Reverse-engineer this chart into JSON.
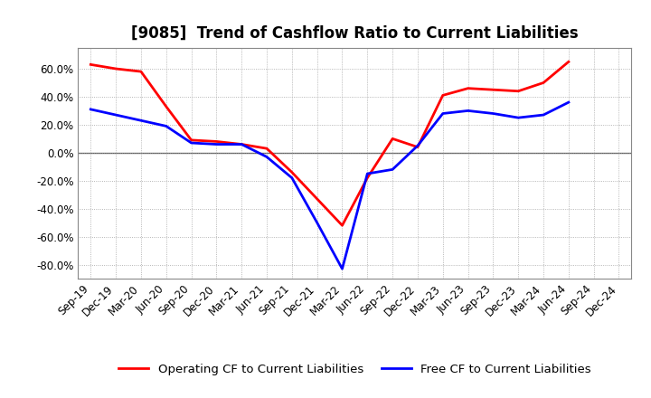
{
  "title": "[9085]  Trend of Cashflow Ratio to Current Liabilities",
  "x_labels": [
    "Sep-19",
    "Dec-19",
    "Mar-20",
    "Jun-20",
    "Sep-20",
    "Dec-20",
    "Mar-21",
    "Jun-21",
    "Sep-21",
    "Dec-21",
    "Mar-22",
    "Jun-22",
    "Sep-22",
    "Dec-22",
    "Mar-23",
    "Jun-23",
    "Sep-23",
    "Dec-23",
    "Mar-24",
    "Jun-24",
    "Sep-24",
    "Dec-24"
  ],
  "operating_cf": [
    63.0,
    60.0,
    58.0,
    33.0,
    9.0,
    8.0,
    6.0,
    3.0,
    -14.0,
    -33.0,
    -52.0,
    null,
    10.0,
    4.0,
    41.0,
    46.0,
    45.0,
    44.0,
    50.0,
    65.0,
    null,
    null
  ],
  "free_cf": [
    31.0,
    27.0,
    23.0,
    19.0,
    7.0,
    6.0,
    6.0,
    -3.0,
    -18.0,
    -50.0,
    -83.0,
    -15.0,
    -12.0,
    5.0,
    28.0,
    30.0,
    28.0,
    25.0,
    27.0,
    36.0,
    null,
    null
  ],
  "operating_cf_full": [
    63.0,
    60.0,
    58.0,
    33.0,
    9.0,
    8.0,
    6.0,
    3.0,
    -14.0,
    -33.0,
    -52.0,
    -18.0,
    10.0,
    4.0,
    41.0,
    46.0,
    45.0,
    44.0,
    50.0,
    65.0,
    null,
    null
  ],
  "ylim": [
    -90,
    75
  ],
  "yticks": [
    -80.0,
    -60.0,
    -40.0,
    -20.0,
    0.0,
    20.0,
    40.0,
    60.0
  ],
  "ytick_labels": [
    "-80.0%",
    "-60.0%",
    "-40.0%",
    "-20.0%",
    "0.0%",
    "20.0%",
    "40.0%",
    "60.0%"
  ],
  "operating_color": "#FF0000",
  "free_color": "#0000FF",
  "line_width": 2.0,
  "background_color": "#FFFFFF",
  "grid_color": "#999999",
  "legend_operating": "Operating CF to Current Liabilities",
  "legend_free": "Free CF to Current Liabilities",
  "title_fontsize": 12,
  "tick_fontsize": 8.5,
  "legend_fontsize": 9.5
}
